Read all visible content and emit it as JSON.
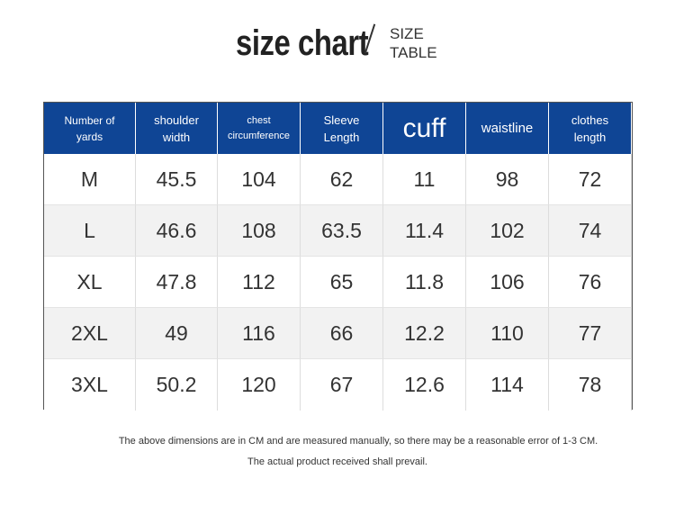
{
  "header": {
    "title": "size chart",
    "subtitle": [
      "SIZE",
      "TABLE"
    ]
  },
  "table": {
    "columns": [
      [
        "Number of",
        "yards"
      ],
      [
        "shoulder",
        "width"
      ],
      [
        "chest",
        "circumference"
      ],
      [
        "Sleeve",
        "Length"
      ],
      [
        "cuff"
      ],
      [
        "waistline"
      ],
      [
        "clothes",
        "length"
      ]
    ],
    "rows": [
      [
        "M",
        "45.5",
        "104",
        "62",
        "11",
        "98",
        "72"
      ],
      [
        "L",
        "46.6",
        "108",
        "63.5",
        "11.4",
        "102",
        "74"
      ],
      [
        "XL",
        "47.8",
        "112",
        "65",
        "11.8",
        "106",
        "76"
      ],
      [
        "2XL",
        "49",
        "116",
        "66",
        "12.2",
        "110",
        "77"
      ],
      [
        "3XL",
        "50.2",
        "120",
        "67",
        "12.6",
        "114",
        "78"
      ]
    ]
  },
  "notes": [
    "The above dimensions are in CM and are measured manually, so there may be a reasonable error of 1-3 CM.",
    "The actual product received shall prevail."
  ]
}
